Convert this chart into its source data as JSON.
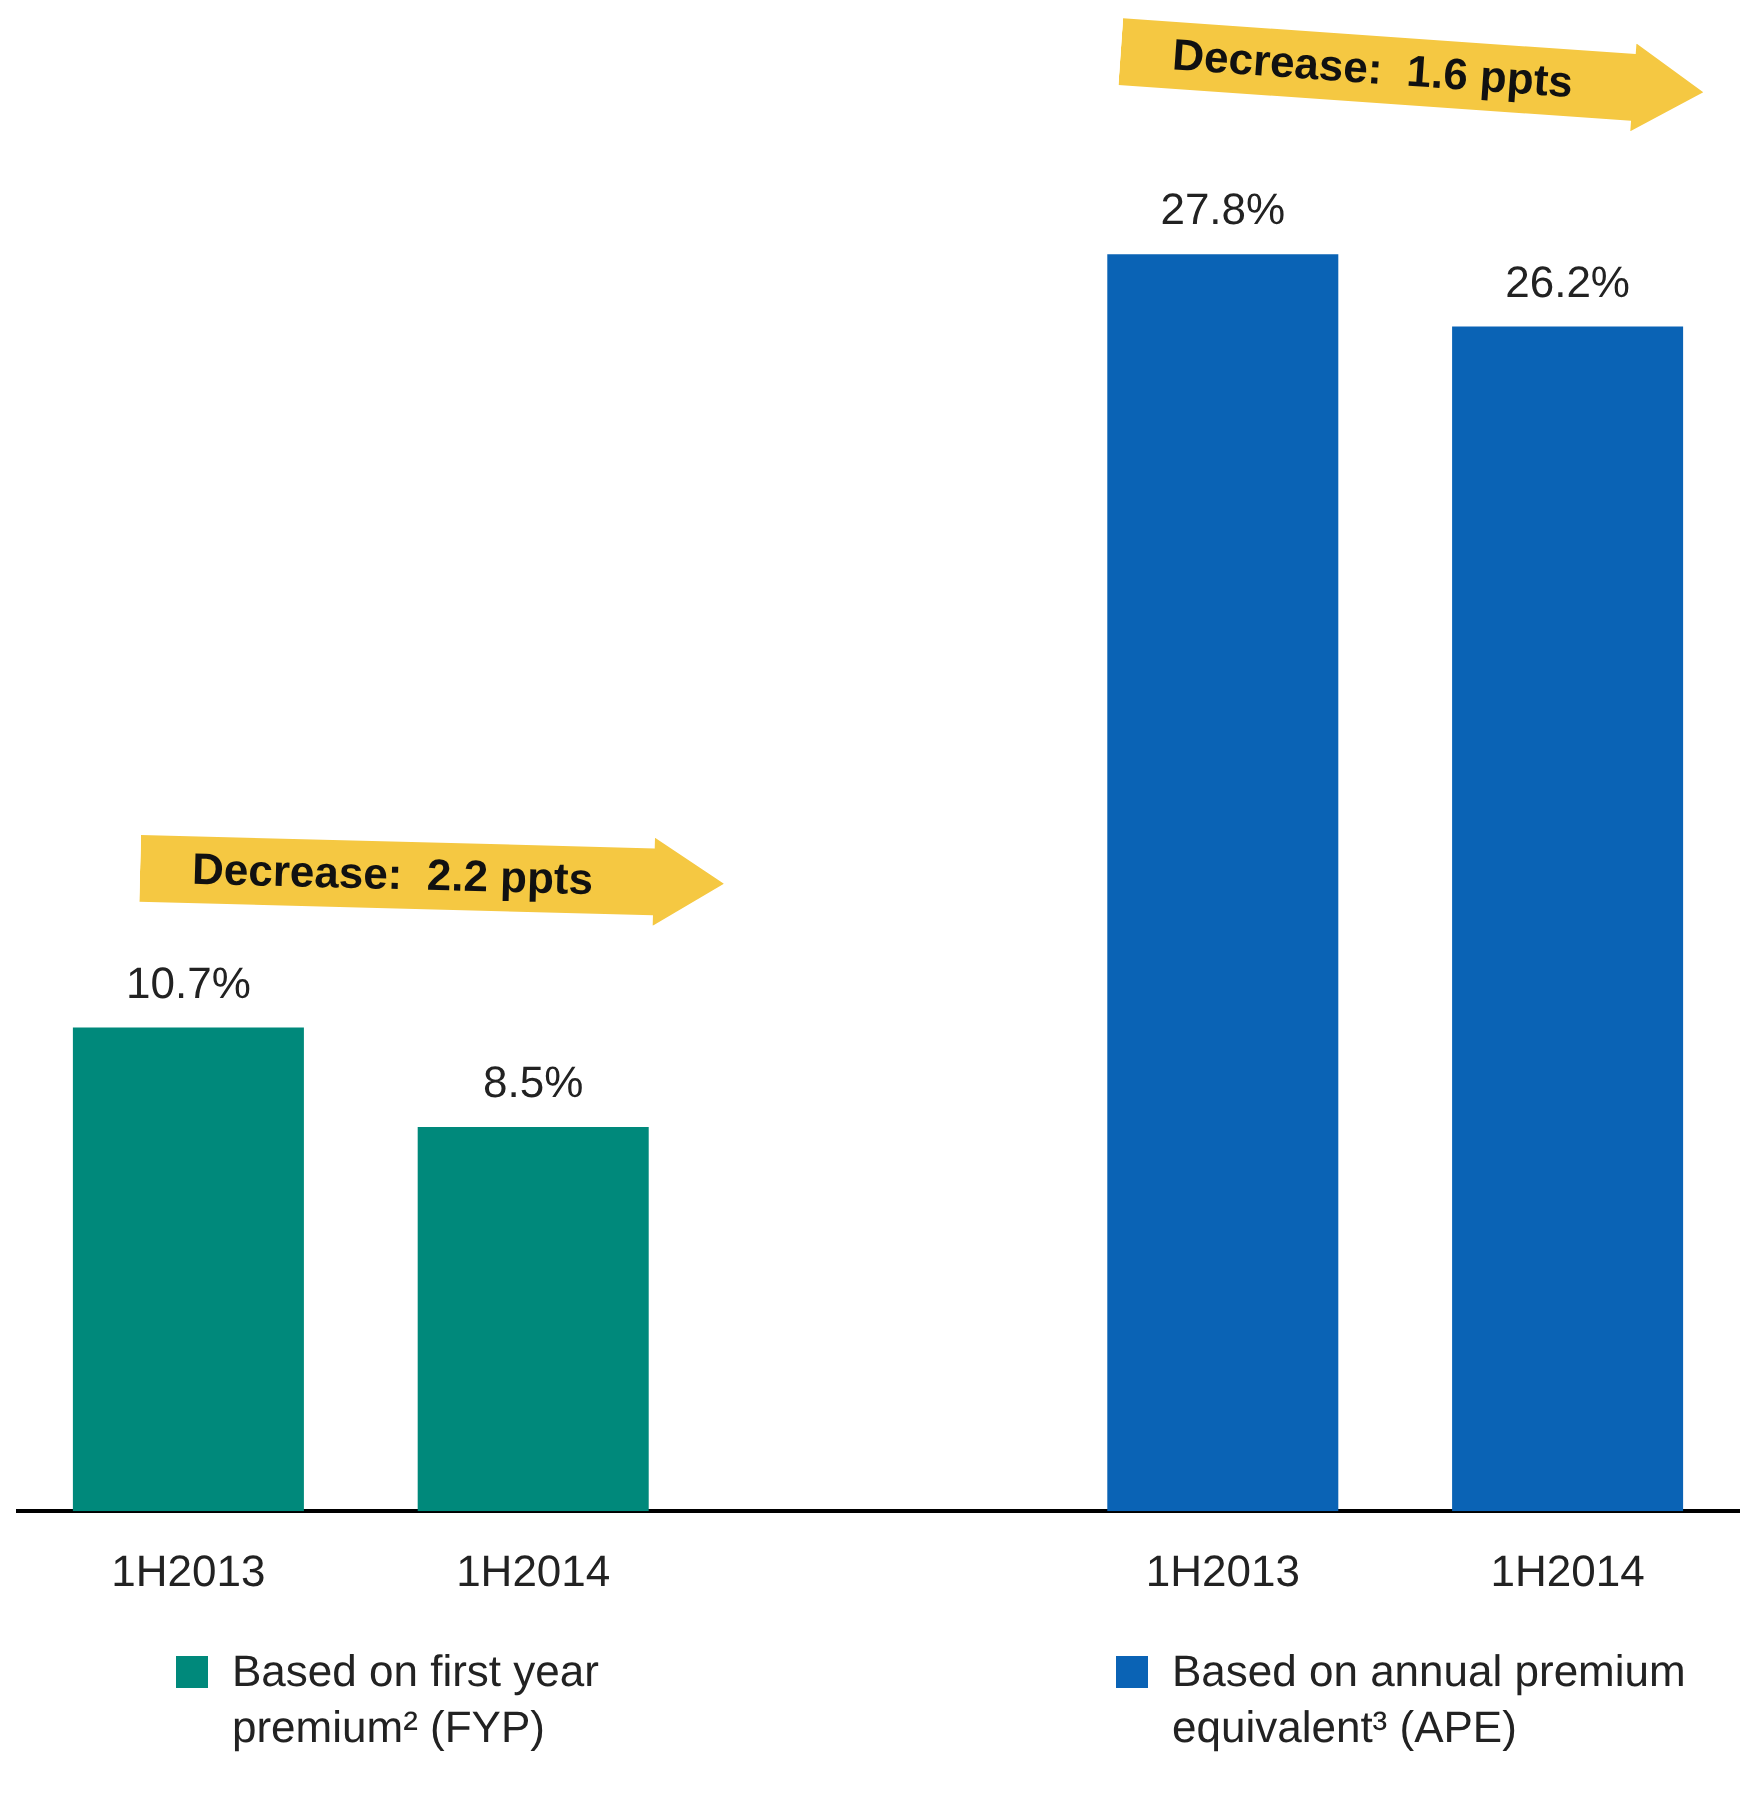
{
  "chart_data": {
    "type": "bar",
    "categories": [
      "1H2013",
      "1H2014",
      null,
      "1H2013",
      "1H2014"
    ],
    "series": [
      {
        "name": "Based on first year premium² (FYP)",
        "color": "#00897b",
        "values": [
          10.7,
          8.5,
          null,
          null,
          null
        ],
        "value_labels": [
          "10.7%",
          "8.5%",
          null,
          null,
          null
        ]
      },
      {
        "name": "Based on annual premium equivalent³ (APE)",
        "color": "#0a63b5",
        "values": [
          null,
          null,
          null,
          27.8,
          26.2
        ],
        "value_labels": [
          null,
          null,
          null,
          "27.8%",
          "26.2%"
        ]
      }
    ],
    "annotations": [
      "Decrease:  2.2 ppts",
      "Decrease:  1.6 ppts"
    ],
    "legend": "bottom",
    "grid": false
  }
}
